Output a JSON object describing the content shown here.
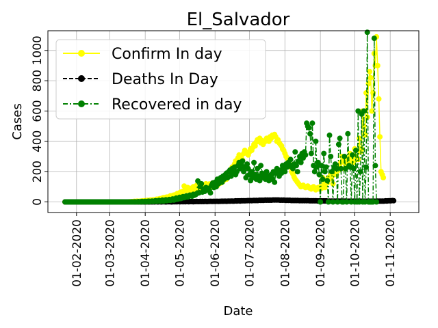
{
  "chart_data": {
    "type": "line",
    "title": "El_Salvador",
    "xlabel": "Date",
    "ylabel": "Cases",
    "grid": true,
    "legend_position": "upper-left",
    "x_start": "2020-01-22",
    "x_end": "2020-11-15",
    "xlim": [
      "2020-01-07",
      "2020-11-26"
    ],
    "ylim": [
      -70,
      1130
    ],
    "x_ticks": [
      "01-02-2020",
      "01-03-2020",
      "01-04-2020",
      "01-05-2020",
      "01-06-2020",
      "01-07-2020",
      "01-08-2020",
      "01-09-2020",
      "01-10-2020",
      "01-11-2020"
    ],
    "y_ticks": [
      0,
      200,
      400,
      600,
      800,
      1000
    ],
    "series": [
      {
        "name": "Confirm In day",
        "color": "#ffff00",
        "line_style": "solid",
        "marker": "circle",
        "values": [
          0,
          0,
          0,
          0,
          0,
          0,
          0,
          0,
          0,
          0,
          0,
          0,
          0,
          0,
          0,
          0,
          0,
          0,
          0,
          0,
          0,
          0,
          0,
          0,
          0,
          0,
          0,
          0,
          0,
          0,
          0,
          0,
          0,
          0,
          0,
          0,
          0,
          0,
          0,
          0,
          0,
          0,
          0,
          0,
          0,
          0,
          0,
          0,
          0,
          0,
          0,
          0,
          0,
          0,
          0,
          0,
          1,
          0,
          2,
          1,
          3,
          4,
          2,
          5,
          3,
          4,
          6,
          5,
          7,
          8,
          6,
          9,
          10,
          8,
          11,
          12,
          10,
          14,
          12,
          15,
          18,
          14,
          20,
          22,
          18,
          25,
          28,
          24,
          30,
          32,
          28,
          35,
          40,
          36,
          42,
          45,
          40,
          50,
          55,
          48,
          60,
          65,
          58,
          70,
          105,
          85,
          75,
          95,
          80,
          90,
          70,
          85,
          100,
          78,
          92,
          110,
          88,
          96,
          80,
          102,
          115,
          90,
          98,
          120,
          85,
          104,
          118,
          95,
          110,
          125,
          100,
          112,
          130,
          108,
          120,
          140,
          125,
          150,
          135,
          160,
          170,
          150,
          180,
          190,
          175,
          210,
          230,
          215,
          250,
          270,
          255,
          290,
          310,
          300,
          290,
          275,
          320,
          340,
          330,
          320,
          310,
          330,
          350,
          340,
          360,
          380,
          370,
          395,
          410,
          400,
          420,
          390,
          405,
          380,
          395,
          400,
          420,
          410,
          400,
          430,
          420,
          440,
          435,
          445,
          430,
          400,
          410,
          390,
          380,
          370,
          350,
          340,
          320,
          300,
          290,
          270,
          250,
          230,
          200,
          185,
          165,
          150,
          140,
          130,
          120,
          110,
          100,
          105,
          110,
          100,
          95,
          100,
          105,
          95,
          90,
          85,
          95,
          100,
          90,
          80,
          90,
          95,
          85,
          100,
          90,
          160,
          110,
          95,
          140,
          125,
          160,
          150,
          180,
          170,
          120,
          200,
          220,
          180,
          240,
          210,
          230,
          260,
          300,
          280,
          220,
          250,
          260,
          290,
          260,
          320,
          280,
          300,
          260,
          350,
          300,
          290,
          280,
          420,
          330,
          350,
          600,
          500,
          440,
          720,
          560,
          780,
          860,
          820,
          600,
          720,
          980,
          900,
          1090,
          900,
          680,
          430,
          200,
          180,
          160
        ]
      },
      {
        "name": "Deaths In Day",
        "color": "#000000",
        "line_style": "dashed",
        "marker": "circle",
        "values": [
          0,
          0,
          0,
          0,
          0,
          0,
          0,
          0,
          0,
          0,
          0,
          0,
          0,
          0,
          0,
          0,
          0,
          0,
          0,
          0,
          0,
          0,
          0,
          0,
          0,
          0,
          0,
          0,
          0,
          0,
          0,
          0,
          0,
          0,
          0,
          0,
          0,
          0,
          0,
          0,
          0,
          0,
          0,
          0,
          0,
          0,
          0,
          0,
          0,
          0,
          0,
          0,
          0,
          0,
          0,
          0,
          0,
          0,
          0,
          0,
          0,
          0,
          0,
          0,
          0,
          0,
          0,
          0,
          0,
          0,
          0,
          0,
          1,
          0,
          0,
          1,
          0,
          1,
          0,
          1,
          1,
          0,
          1,
          1,
          0,
          1,
          1,
          1,
          0,
          1,
          1,
          1,
          1,
          0,
          1,
          1,
          1,
          1,
          1,
          2,
          1,
          1,
          2,
          1,
          2,
          1,
          2,
          2,
          1,
          2,
          2,
          2,
          1,
          2,
          2,
          3,
          2,
          2,
          3,
          2,
          3,
          2,
          3,
          3,
          2,
          3,
          3,
          4,
          3,
          3,
          4,
          3,
          4,
          4,
          3,
          4,
          4,
          5,
          4,
          5,
          5,
          4,
          5,
          6,
          5,
          6,
          6,
          5,
          6,
          7,
          6,
          7,
          7,
          6,
          8,
          7,
          8,
          7,
          8,
          8,
          9,
          8,
          9,
          8,
          9,
          10,
          9,
          10,
          9,
          10,
          11,
          10,
          11,
          10,
          11,
          12,
          11,
          12,
          11,
          12,
          11,
          12,
          13,
          12,
          13,
          12,
          13,
          12,
          11,
          12,
          11,
          12,
          11,
          10,
          11,
          10,
          11,
          10,
          9,
          10,
          9,
          10,
          9,
          10,
          9,
          8,
          9,
          8,
          9,
          8,
          9,
          8,
          9,
          8,
          7,
          8,
          7,
          8,
          7,
          8,
          7,
          6,
          7,
          6,
          7,
          6,
          7,
          6,
          7,
          6,
          5,
          6,
          5,
          6,
          5,
          6,
          5,
          6,
          5,
          6,
          5,
          6,
          5,
          6,
          5,
          6,
          5,
          4,
          5,
          4,
          5,
          4,
          5,
          4,
          5,
          4,
          5,
          4,
          5,
          4,
          5,
          4,
          5,
          4,
          5,
          4,
          5,
          4,
          5,
          4,
          5,
          4,
          5,
          6,
          5,
          6,
          5,
          6,
          5,
          6,
          7,
          6,
          7,
          8,
          7,
          8,
          9,
          8
        ]
      },
      {
        "name": "Recovered in day",
        "color": "#008000",
        "line_style": "dashdot",
        "marker": "circle",
        "values": [
          0,
          0,
          0,
          0,
          0,
          0,
          0,
          0,
          0,
          0,
          0,
          0,
          0,
          0,
          0,
          0,
          0,
          0,
          0,
          0,
          0,
          0,
          0,
          0,
          0,
          0,
          0,
          0,
          0,
          0,
          0,
          0,
          0,
          0,
          0,
          0,
          0,
          0,
          0,
          0,
          0,
          0,
          0,
          0,
          0,
          0,
          0,
          0,
          0,
          0,
          0,
          0,
          0,
          0,
          0,
          0,
          0,
          0,
          0,
          0,
          0,
          1,
          0,
          0,
          2,
          0,
          1,
          3,
          0,
          2,
          4,
          0,
          3,
          5,
          1,
          4,
          6,
          2,
          5,
          8,
          3,
          6,
          10,
          4,
          7,
          12,
          5,
          9,
          14,
          8,
          11,
          16,
          10,
          13,
          20,
          12,
          15,
          25,
          18,
          20,
          30,
          22,
          25,
          35,
          28,
          30,
          40,
          32,
          36,
          45,
          40,
          38,
          50,
          44,
          48,
          55,
          138,
          60,
          100,
          120,
          65,
          85,
          70,
          95,
          80,
          90,
          75,
          60,
          110,
          125,
          95,
          130,
          100,
          150,
          120,
          140,
          160,
          130,
          170,
          150,
          180,
          190,
          160,
          200,
          210,
          170,
          220,
          190,
          230,
          180,
          200,
          240,
          260,
          220,
          250,
          270,
          200,
          230,
          160,
          250,
          220,
          180,
          140,
          200,
          160,
          260,
          180,
          150,
          220,
          170,
          140,
          240,
          190,
          160,
          180,
          150,
          200,
          170,
          140,
          160,
          180,
          150,
          200,
          130,
          190,
          220,
          200,
          170,
          210,
          190,
          240,
          220,
          200,
          250,
          230,
          260,
          240,
          280,
          230,
          220,
          250,
          330,
          240,
          200,
          270,
          300,
          260,
          320,
          290,
          330,
          310,
          520,
          500,
          490,
          450,
          320,
          520,
          240,
          200,
          400,
          230,
          260,
          180,
          0,
          240,
          150,
          320,
          200,
          230,
          140,
          0,
          440,
          300,
          200,
          0,
          230,
          250,
          220,
          0,
          380,
          420,
          220,
          0,
          0,
          300,
          220,
          0,
          450,
          240,
          230,
          0,
          310,
          220,
          0,
          340,
          0,
          600,
          0,
          200,
          580,
          0,
          600,
          0,
          230,
          1120,
          0,
          0,
          0,
          0,
          0,
          1080,
          240,
          0
        ]
      }
    ]
  }
}
